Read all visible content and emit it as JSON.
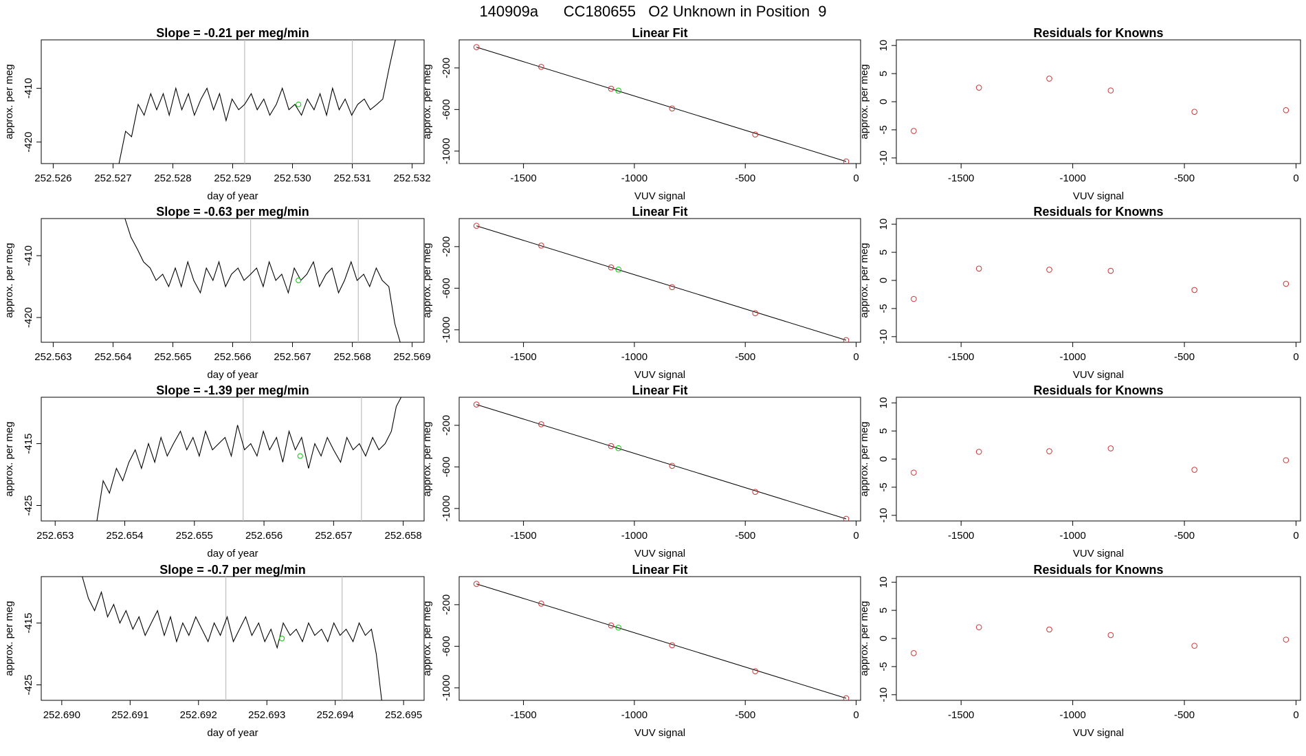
{
  "page_title": "140909a      CC180655   O2 Unknown in Position  9",
  "colors": {
    "trace": "#000000",
    "vline": "#bebebe",
    "known_point": "#cd3333",
    "unknown_point": "#00cc00",
    "fit_line": "#000000"
  },
  "chart_data": [
    {
      "type": "line",
      "row": 1,
      "title": "Slope =  -0.21  per meg/min",
      "xlabel": "day of year",
      "ylabel": "approx. per meg",
      "xlim": [
        252.5258,
        252.5322
      ],
      "ylim": [
        -424,
        -401
      ],
      "xticks": [
        "252.526",
        "252.527",
        "252.528",
        "252.529",
        "252.530",
        "252.531",
        "252.532"
      ],
      "yticks": [
        "-410",
        "-420"
      ],
      "vlines": [
        252.5292,
        252.531
      ],
      "unknown_point": {
        "x": 252.5301,
        "y": -413.0
      },
      "x": [
        252.5271,
        252.52721,
        252.52731,
        252.52742,
        252.52752,
        252.52763,
        252.52773,
        252.52784,
        252.52794,
        252.52805,
        252.52815,
        252.52826,
        252.52836,
        252.52847,
        252.52857,
        252.52868,
        252.52878,
        252.52889,
        252.52899,
        252.5291,
        252.5292,
        252.52931,
        252.52941,
        252.52952,
        252.52962,
        252.52973,
        252.52983,
        252.52994,
        252.53004,
        252.53015,
        252.53025,
        252.53036,
        252.53046,
        252.53057,
        252.53067,
        252.53078,
        252.53088,
        252.53099,
        252.53109,
        252.5312,
        252.5313,
        252.53141,
        252.53151,
        252.53162,
        252.53172
      ],
      "y": [
        -424,
        -418,
        -419,
        -413,
        -415,
        -411,
        -414,
        -411,
        -415,
        -410,
        -414,
        -411,
        -415,
        -412,
        -410,
        -414,
        -411,
        -416,
        -412,
        -414,
        -413,
        -411,
        -414,
        -412,
        -415,
        -413,
        -410,
        -414,
        -413,
        -415,
        -412,
        -414,
        -411,
        -415,
        -410,
        -414,
        -412,
        -415,
        -413,
        -412,
        -414,
        -413,
        -412,
        -406,
        -401
      ]
    },
    {
      "type": "line",
      "row": 2,
      "title": "Slope =  -0.63  per meg/min",
      "xlabel": "day of year",
      "ylabel": "approx. per meg",
      "xlim": [
        252.5628,
        252.5692
      ],
      "ylim": [
        -424,
        -404
      ],
      "xticks": [
        "252.563",
        "252.564",
        "252.565",
        "252.566",
        "252.567",
        "252.568",
        "252.569"
      ],
      "yticks": [
        "-410",
        "-420"
      ],
      "vlines": [
        252.5663,
        252.5681
      ],
      "unknown_point": {
        "x": 252.5671,
        "y": -414.0
      },
      "x": [
        252.5642,
        252.5643,
        252.56441,
        252.56451,
        252.56462,
        252.56472,
        252.56483,
        252.56493,
        252.56504,
        252.56514,
        252.56525,
        252.56535,
        252.56546,
        252.56556,
        252.56567,
        252.56577,
        252.56588,
        252.56598,
        252.56609,
        252.56619,
        252.5663,
        252.5664,
        252.56651,
        252.56661,
        252.56672,
        252.56682,
        252.56693,
        252.56703,
        252.56714,
        252.56724,
        252.56735,
        252.56745,
        252.56756,
        252.56766,
        252.56777,
        252.56787,
        252.56798,
        252.56808,
        252.56819,
        252.56829,
        252.5684,
        252.5685,
        252.56861,
        252.56871,
        252.5688
      ],
      "y": [
        -404,
        -407,
        -409,
        -411,
        -412,
        -414,
        -413,
        -415,
        -412,
        -415,
        -411,
        -414,
        -416,
        -412,
        -414,
        -411,
        -415,
        -413,
        -412,
        -414,
        -413,
        -412,
        -415,
        -411,
        -414,
        -413,
        -416,
        -412,
        -414,
        -413,
        -411,
        -415,
        -413,
        -412,
        -416,
        -414,
        -411,
        -414,
        -413,
        -415,
        -412,
        -414,
        -415,
        -421,
        -424
      ]
    },
    {
      "type": "line",
      "row": 3,
      "title": "Slope =  -1.39  per meg/min",
      "xlabel": "day of year",
      "ylabel": "approx. per meg",
      "xlim": [
        252.6528,
        252.6583
      ],
      "ylim": [
        -427.5,
        -407.5
      ],
      "xticks": [
        "252.653",
        "252.654",
        "252.655",
        "252.656",
        "252.657",
        "252.658"
      ],
      "yticks": [
        "-415",
        "-425"
      ],
      "vlines": [
        252.6557,
        252.6574
      ],
      "unknown_point": {
        "x": 252.65652,
        "y": -417.0
      },
      "x": [
        252.6536,
        252.65369,
        252.65378,
        252.65388,
        252.65397,
        252.65406,
        252.65415,
        252.65424,
        252.65434,
        252.65443,
        252.65452,
        252.65461,
        252.6547,
        252.6548,
        252.65489,
        252.65498,
        252.65507,
        252.65516,
        252.65526,
        252.65535,
        252.65544,
        252.65553,
        252.65562,
        252.65572,
        252.65581,
        252.6559,
        252.65599,
        252.65608,
        252.65618,
        252.65627,
        252.65636,
        252.65645,
        252.65654,
        252.65664,
        252.65673,
        252.65682,
        252.65691,
        252.657,
        252.6571,
        252.65719,
        252.65728,
        252.65737,
        252.65746,
        252.65756,
        252.65765,
        252.65774,
        252.65783,
        252.6579,
        252.65797
      ],
      "y": [
        -427.5,
        -421,
        -423,
        -419,
        -421,
        -418,
        -416,
        -419,
        -415,
        -418,
        -414,
        -417,
        -415,
        -413,
        -416,
        -414,
        -417,
        -413,
        -416,
        -415,
        -414,
        -417,
        -412,
        -416,
        -415,
        -417,
        -413,
        -416,
        -414,
        -418,
        -413,
        -416,
        -414,
        -419,
        -415,
        -417,
        -414,
        -416,
        -418,
        -414,
        -416,
        -415,
        -417,
        -414,
        -416,
        -415,
        -413,
        -409,
        -407.5
      ]
    },
    {
      "type": "line",
      "row": 4,
      "title": "Slope =  -0.7  per meg/min",
      "xlabel": "day of year",
      "ylabel": "approx. per meg",
      "xlim": [
        252.6897,
        252.6953
      ],
      "ylim": [
        -427.5,
        -407.5
      ],
      "xticks": [
        "252.690",
        "252.691",
        "252.692",
        "252.693",
        "252.694",
        "252.695"
      ],
      "yticks": [
        "-415",
        "-425"
      ],
      "vlines": [
        252.6924,
        252.6941
      ],
      "unknown_point": {
        "x": 252.69322,
        "y": -417.5
      },
      "x": [
        252.6903,
        252.69039,
        252.69048,
        252.69058,
        252.69067,
        252.69076,
        252.69085,
        252.69094,
        252.69104,
        252.69113,
        252.69122,
        252.69131,
        252.6914,
        252.6915,
        252.69159,
        252.69168,
        252.69177,
        252.69186,
        252.69196,
        252.69205,
        252.69214,
        252.69223,
        252.69232,
        252.69242,
        252.69251,
        252.6926,
        252.69269,
        252.69278,
        252.69288,
        252.69297,
        252.69306,
        252.69315,
        252.69324,
        252.69334,
        252.69343,
        252.69352,
        252.69361,
        252.6937,
        252.6938,
        252.69389,
        252.69398,
        252.69407,
        252.69416,
        252.69426,
        252.69435,
        252.69444,
        252.69453,
        252.6946,
        252.69468
      ],
      "y": [
        -407.5,
        -411,
        -413,
        -410,
        -414,
        -412,
        -415,
        -413,
        -416,
        -414,
        -417,
        -415,
        -413,
        -417,
        -414,
        -418,
        -415,
        -417,
        -414,
        -416,
        -418,
        -415,
        -417,
        -414,
        -418,
        -416,
        -414,
        -417,
        -415,
        -418,
        -416,
        -419,
        -415,
        -417,
        -416,
        -418,
        -415,
        -417,
        -416,
        -418,
        -415,
        -417,
        -416,
        -418,
        -415,
        -417,
        -416,
        -420,
        -427.5
      ]
    },
    {
      "type": "scatter",
      "row": 1,
      "title": "Linear Fit",
      "xlabel": "VUV signal",
      "ylabel": "approx. per meg",
      "xlim": [
        -1790,
        20
      ],
      "ylim": [
        -1120,
        70
      ],
      "xticks": [
        -1500,
        -1000,
        -500,
        0
      ],
      "yticks": [
        -200,
        -600,
        -1000
      ],
      "knowns": {
        "x": [
          -1712,
          -1420,
          -1105,
          -830,
          -455,
          -45
        ],
        "y": [
          0,
          -190,
          -400,
          -590,
          -840,
          -1100
        ]
      },
      "unknown": {
        "x": -1072,
        "y": -418
      },
      "fit_line": {
        "x": [
          -1712,
          -45
        ],
        "y": [
          0,
          -1100
        ]
      }
    },
    {
      "type": "scatter",
      "row": 2,
      "title": "Linear Fit",
      "xlabel": "VUV signal",
      "ylabel": "approx. per meg",
      "xlim": [
        -1790,
        20
      ],
      "ylim": [
        -1120,
        70
      ],
      "xticks": [
        -1500,
        -1000,
        -500,
        0
      ],
      "yticks": [
        -200,
        -600,
        -1000
      ],
      "knowns": {
        "x": [
          -1712,
          -1420,
          -1105,
          -830,
          -455,
          -45
        ],
        "y": [
          0,
          -190,
          -400,
          -590,
          -840,
          -1100
        ]
      },
      "unknown": {
        "x": -1072,
        "y": -420
      },
      "fit_line": {
        "x": [
          -1712,
          -45
        ],
        "y": [
          0,
          -1100
        ]
      }
    },
    {
      "type": "scatter",
      "row": 3,
      "title": "Linear Fit",
      "xlabel": "VUV signal",
      "ylabel": "approx. per meg",
      "xlim": [
        -1790,
        20
      ],
      "ylim": [
        -1120,
        70
      ],
      "xticks": [
        -1500,
        -1000,
        -500,
        0
      ],
      "yticks": [
        -200,
        -600,
        -1000
      ],
      "knowns": {
        "x": [
          -1712,
          -1420,
          -1105,
          -830,
          -455,
          -45
        ],
        "y": [
          0,
          -190,
          -400,
          -590,
          -840,
          -1100
        ]
      },
      "unknown": {
        "x": -1072,
        "y": -420
      },
      "fit_line": {
        "x": [
          -1712,
          -45
        ],
        "y": [
          0,
          -1100
        ]
      }
    },
    {
      "type": "scatter",
      "row": 4,
      "title": "Linear Fit",
      "xlabel": "VUV signal",
      "ylabel": "approx. per meg",
      "xlim": [
        -1790,
        20
      ],
      "ylim": [
        -1120,
        70
      ],
      "xticks": [
        -1500,
        -1000,
        -500,
        0
      ],
      "yticks": [
        -200,
        -600,
        -1000
      ],
      "knowns": {
        "x": [
          -1712,
          -1420,
          -1105,
          -830,
          -455,
          -45
        ],
        "y": [
          0,
          -190,
          -400,
          -590,
          -840,
          -1100
        ]
      },
      "unknown": {
        "x": -1072,
        "y": -420
      },
      "fit_line": {
        "x": [
          -1712,
          -45
        ],
        "y": [
          0,
          -1100
        ]
      }
    },
    {
      "type": "scatter",
      "row": 1,
      "title": "Residuals for Knowns",
      "xlabel": "VUV signal",
      "ylabel": "approx. per meg",
      "xlim": [
        -1790,
        20
      ],
      "ylim": [
        -11,
        11
      ],
      "xticks": [
        -1500,
        -1000,
        -500,
        0
      ],
      "yticks": [
        10,
        5,
        0,
        -5,
        -10
      ],
      "x": [
        -1712,
        -1420,
        -1105,
        -830,
        -455,
        -45
      ],
      "y": [
        -5.2,
        2.5,
        4.1,
        2.0,
        -1.8,
        -1.5
      ]
    },
    {
      "type": "scatter",
      "row": 2,
      "title": "Residuals for Knowns",
      "xlabel": "VUV signal",
      "ylabel": "approx. per meg",
      "xlim": [
        -1790,
        20
      ],
      "ylim": [
        -11,
        11
      ],
      "xticks": [
        -1500,
        -1000,
        -500,
        0
      ],
      "yticks": [
        10,
        5,
        0,
        -5,
        -10
      ],
      "x": [
        -1712,
        -1420,
        -1105,
        -830,
        -455,
        -45
      ],
      "y": [
        -3.3,
        2.1,
        1.9,
        1.7,
        -1.7,
        -0.6
      ]
    },
    {
      "type": "scatter",
      "row": 3,
      "title": "Residuals for Knowns",
      "xlabel": "VUV signal",
      "ylabel": "approx. per meg",
      "xlim": [
        -1790,
        20
      ],
      "ylim": [
        -11,
        11
      ],
      "xticks": [
        -1500,
        -1000,
        -500,
        0
      ],
      "yticks": [
        10,
        5,
        0,
        -5,
        -10
      ],
      "x": [
        -1712,
        -1420,
        -1105,
        -830,
        -455,
        -45
      ],
      "y": [
        -2.4,
        1.3,
        1.4,
        1.9,
        -1.9,
        -0.2
      ]
    },
    {
      "type": "scatter",
      "row": 4,
      "title": "Residuals for Knowns",
      "xlabel": "VUV signal",
      "ylabel": "approx. per meg",
      "xlim": [
        -1790,
        20
      ],
      "ylim": [
        -11,
        11
      ],
      "xticks": [
        -1500,
        -1000,
        -500,
        0
      ],
      "yticks": [
        10,
        5,
        0,
        -5,
        -10
      ],
      "x": [
        -1712,
        -1420,
        -1105,
        -830,
        -455,
        -45
      ],
      "y": [
        -2.6,
        2.0,
        1.6,
        0.6,
        -1.3,
        -0.2
      ]
    }
  ]
}
